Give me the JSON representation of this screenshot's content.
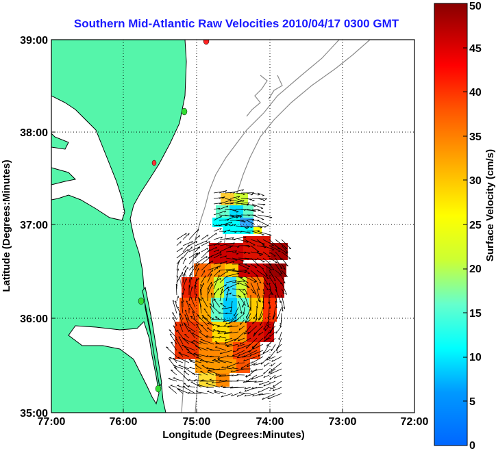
{
  "title": "Southern Mid-Atlantic Raw Velocities 2010/04/17 0300 GMT",
  "map": {
    "xlabel": "Longitude (Degrees:Minutes)",
    "ylabel": "Latitude (Degrees:Minutes)",
    "lon_range": [
      -77,
      -72
    ],
    "lat_range": [
      35,
      39
    ],
    "x_ticks": [
      {
        "value": -77,
        "label": "77:00"
      },
      {
        "value": -76,
        "label": "76:00"
      },
      {
        "value": -75,
        "label": "75:00"
      },
      {
        "value": -74,
        "label": "74:00"
      },
      {
        "value": -73,
        "label": "73:00"
      },
      {
        "value": -72,
        "label": "72:00"
      }
    ],
    "y_ticks": [
      {
        "value": 39,
        "label": "39:00"
      },
      {
        "value": 38,
        "label": "38:00"
      },
      {
        "value": 37,
        "label": "37:00"
      },
      {
        "value": 36,
        "label": "36:00"
      },
      {
        "value": 35,
        "label": "35:00"
      }
    ],
    "grid": "dotted",
    "colors": {
      "land": "#55f5aa",
      "coast": "#000000",
      "bathymetry": "#8a8a8a",
      "vectors": "#000000"
    },
    "sites": [
      {
        "lon": -74.88,
        "lat": 38.97,
        "status": "red"
      },
      {
        "lon": -75.15,
        "lat": 38.2,
        "status": "green"
      },
      {
        "lon": -75.53,
        "lat": 37.63,
        "status": "red"
      },
      {
        "lon": -75.73,
        "lat": 36.2,
        "status": "green"
      },
      {
        "lon": -75.5,
        "lat": 35.33,
        "status": "green"
      }
    ]
  },
  "colorbar": {
    "label": "Surface Velocity (cm/s)",
    "min": 0,
    "max": 50,
    "ticks": [
      "0",
      "5",
      "10",
      "15",
      "20",
      "25",
      "30",
      "35",
      "40",
      "45",
      "50"
    ]
  }
}
